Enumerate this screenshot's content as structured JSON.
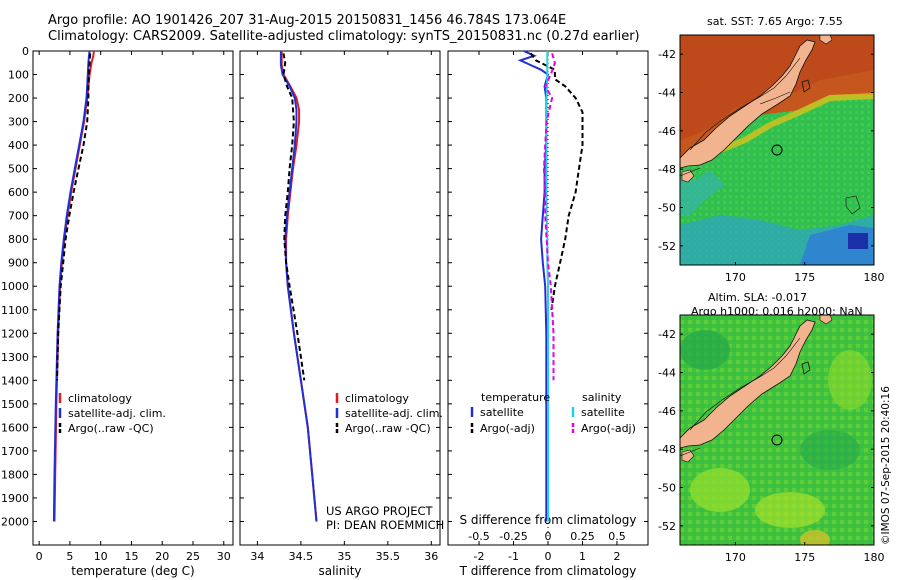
{
  "header": {
    "line1": "Argo profile: AO 1901426_207 31-Aug-2015 20150831_1456 46.784S 173.064E",
    "line2": "Climatology: CARS2009. Satellite-adjusted climatology: synTS_20150831.nc (0.27d earlier)"
  },
  "credit": {
    "project": "US ARGO PROJECT",
    "pi": "PI: DEAN ROEMMICH",
    "stamp": "©IMOS 07-Sep-2015 20:40:16"
  },
  "colors": {
    "climatology": "#e41a1c",
    "satellite": "#1f2fd6",
    "argo": "#000000",
    "salinity_satellite": "#22d3e6",
    "salinity_argo": "#e600e6",
    "land": "#f2b48f"
  },
  "depth_axis": {
    "ticks": [
      "0",
      "100",
      "200",
      "300",
      "400",
      "500",
      "600",
      "700",
      "800",
      "900",
      "1000",
      "1100",
      "1200",
      "1300",
      "1400",
      "1500",
      "1600",
      "1700",
      "1800",
      "1900",
      "2000"
    ],
    "range": [
      0,
      2100
    ]
  },
  "chart_data": [
    {
      "id": "temperature",
      "type": "line",
      "xlabel": "temperature (deg C)",
      "xlim": [
        -1,
        31.5
      ],
      "xticks": [
        "0",
        "5",
        "10",
        "15",
        "20",
        "25",
        "30"
      ],
      "xtick_values": [
        0,
        5,
        10,
        15,
        20,
        25,
        30
      ],
      "ylim": [
        2100,
        0
      ],
      "legend": [
        "climatology",
        "satellite-adj. clim.",
        "Argo(..raw -QC)"
      ],
      "series": [
        {
          "name": "climatology",
          "color": "#e41a1c",
          "dash": "",
          "depth": [
            0,
            20,
            50,
            100,
            150,
            200,
            300,
            400,
            500,
            600,
            700,
            800,
            900,
            1000,
            1200,
            1500,
            1800,
            2000
          ],
          "values": [
            8.9,
            8.8,
            8.5,
            8.2,
            8.0,
            7.8,
            7.3,
            6.6,
            5.9,
            5.2,
            4.6,
            4.1,
            3.7,
            3.4,
            3.1,
            2.8,
            2.6,
            2.5
          ]
        },
        {
          "name": "satellite-adj. clim.",
          "color": "#1f2fd6",
          "dash": "",
          "depth": [
            0,
            20,
            50,
            100,
            150,
            200,
            300,
            400,
            500,
            600,
            700,
            800,
            900,
            1000,
            1200,
            1500,
            1800,
            2000
          ],
          "values": [
            8.2,
            8.1,
            8.0,
            7.9,
            7.8,
            7.7,
            7.2,
            6.5,
            5.8,
            5.1,
            4.5,
            4.0,
            3.6,
            3.3,
            3.0,
            2.7,
            2.5,
            2.4
          ]
        },
        {
          "name": "Argo(..raw -QC)",
          "color": "#000000",
          "dash": "5,3",
          "depth": [
            10,
            50,
            100,
            150,
            200,
            300,
            400,
            500,
            600,
            700,
            800,
            900,
            1000,
            1200,
            1400
          ],
          "values": [
            8.3,
            8.2,
            8.1,
            8.0,
            8.0,
            7.8,
            7.2,
            6.4,
            5.6,
            4.9,
            4.3,
            3.9,
            3.5,
            3.1,
            2.9
          ]
        }
      ]
    },
    {
      "id": "salinity",
      "type": "line",
      "xlabel": "salinity",
      "xlim": [
        33.8,
        36.1
      ],
      "xticks": [
        "34",
        "34.5",
        "35",
        "35.5",
        "36"
      ],
      "xtick_values": [
        34,
        34.5,
        35,
        35.5,
        36
      ],
      "ylim": [
        2100,
        0
      ],
      "legend": [
        "climatology",
        "satellite-adj. clim.",
        "Argo(..raw -QC)"
      ],
      "series": [
        {
          "name": "climatology",
          "color": "#e41a1c",
          "dash": "",
          "depth": [
            0,
            30,
            60,
            100,
            150,
            200,
            250,
            300,
            400,
            500,
            600,
            700,
            800,
            900,
            1000,
            1200,
            1400,
            1600,
            1800,
            2000
          ],
          "values": [
            34.28,
            34.28,
            34.28,
            34.3,
            34.38,
            34.45,
            34.48,
            34.48,
            34.45,
            34.41,
            34.38,
            34.35,
            34.33,
            34.33,
            34.35,
            34.42,
            34.5,
            34.58,
            34.63,
            34.68
          ]
        },
        {
          "name": "satellite-adj. clim.",
          "color": "#1f2fd6",
          "dash": "",
          "depth": [
            0,
            30,
            60,
            100,
            150,
            200,
            250,
            300,
            400,
            500,
            600,
            700,
            800,
            900,
            1000,
            1200,
            1400,
            1600,
            1800,
            2000
          ],
          "values": [
            34.27,
            34.27,
            34.27,
            34.29,
            34.37,
            34.43,
            34.45,
            34.45,
            34.43,
            34.4,
            34.37,
            34.34,
            34.32,
            34.33,
            34.35,
            34.42,
            34.5,
            34.58,
            34.63,
            34.68
          ]
        },
        {
          "name": "Argo(..raw -QC)",
          "color": "#000000",
          "dash": "5,3",
          "depth": [
            10,
            50,
            100,
            150,
            200,
            300,
            400,
            500,
            600,
            700,
            800,
            900,
            1000,
            1200,
            1400
          ],
          "values": [
            34.3,
            34.32,
            34.3,
            34.34,
            34.4,
            34.42,
            34.4,
            34.37,
            34.35,
            34.32,
            34.31,
            34.33,
            34.37,
            34.46,
            34.54
          ]
        }
      ]
    },
    {
      "id": "difference",
      "type": "line",
      "xlabel": "T difference from climatology",
      "xlabel_top": "S difference from climatology",
      "xlim": [
        -2.9,
        2.9
      ],
      "xticks": [
        "-2",
        "-1",
        "0",
        "1",
        "2"
      ],
      "xtick_values": [
        -2,
        -1,
        0,
        1,
        2
      ],
      "xticks_top": [
        "-0.5",
        "-0.25",
        "0",
        "0.25",
        "0.5"
      ],
      "xtick_top_values": [
        -0.5,
        -0.25,
        0,
        0.25,
        0.5
      ],
      "ylim": [
        2100,
        0
      ],
      "legend_groups": [
        "temperature",
        "salinity"
      ],
      "legend": [
        "satellite",
        "Argo(-adj)",
        "satellite",
        "Argo(-adj)"
      ],
      "series": [
        {
          "name": "satellite",
          "group": "temperature",
          "color": "#1f2fd6",
          "dash": "",
          "depth": [
            0,
            20,
            40,
            60,
            80,
            100,
            150,
            200,
            300,
            400,
            500,
            600,
            700,
            800,
            900,
            1000,
            1200,
            1500,
            1800,
            2000
          ],
          "values": [
            -0.7,
            -0.4,
            -0.8,
            -0.5,
            -0.2,
            0,
            -0.1,
            -0.05,
            -0.05,
            -0.05,
            -0.1,
            -0.1,
            -0.15,
            -0.2,
            -0.15,
            -0.08,
            -0.05,
            -0.05,
            -0.05,
            -0.05
          ]
        },
        {
          "name": "Argo(-adj)",
          "group": "temperature",
          "color": "#000000",
          "dash": "5,3",
          "depth": [
            10,
            40,
            80,
            120,
            150,
            200,
            260,
            300,
            400,
            500,
            600,
            700,
            800,
            900,
            1000,
            1100
          ],
          "values": [
            -0.5,
            -0.35,
            0.2,
            0.2,
            0.5,
            0.8,
            1.0,
            1.0,
            1.0,
            0.9,
            0.8,
            0.6,
            0.5,
            0.35,
            0.2,
            0.1
          ]
        },
        {
          "name": "satellite",
          "group": "salinity",
          "color": "#22d3e6",
          "dash": "",
          "depth": [
            0,
            50,
            100,
            200,
            300,
            400,
            500,
            600,
            700,
            800,
            900,
            1000,
            1200,
            1500,
            1800,
            2000
          ],
          "values": [
            -0.005,
            -0.005,
            -0.005,
            -0.01,
            -0.01,
            -0.01,
            -0.01,
            -0.01,
            -0.01,
            -0.005,
            -0.005,
            0,
            0,
            0,
            0,
            0
          ]
        },
        {
          "name": "Argo(-adj)",
          "group": "salinity",
          "color": "#e600e6",
          "dash": "5,3",
          "depth": [
            10,
            50,
            100,
            150,
            200,
            300,
            400,
            500,
            600,
            700,
            800,
            900,
            1000,
            1200,
            1400
          ],
          "values": [
            0.03,
            0.05,
            0.02,
            -0.02,
            0.03,
            -0.01,
            -0.02,
            -0.03,
            -0.02,
            -0.02,
            -0.01,
            0.0,
            0.02,
            0.04,
            0.04
          ]
        }
      ]
    }
  ],
  "maps": [
    {
      "id": "sst-map",
      "title": "sat. SST: 7.65 Argo: 7.55",
      "title2": "",
      "yticks": [
        "-42",
        "-44",
        "-46",
        "-48",
        "-50",
        "-52"
      ],
      "ytick_values": [
        -42,
        -44,
        -46,
        -48,
        -50,
        -52
      ],
      "xticks": [
        "170",
        "175",
        "180"
      ],
      "xtick_values": [
        170,
        175,
        180
      ],
      "lat_range": [
        -41,
        -53
      ],
      "lon_range": [
        166,
        180
      ],
      "profile_lon": 173.064,
      "profile_lat": -46.784
    },
    {
      "id": "sla-map",
      "title": "Altim. SLA: -0.017",
      "title2": "Argo h1000: 0.016 h2000: NaN",
      "yticks": [
        "-42",
        "-44",
        "-46",
        "-48",
        "-50",
        "-52"
      ],
      "ytick_values": [
        -42,
        -44,
        -46,
        -48,
        -50,
        -52
      ],
      "xticks": [
        "170",
        "175",
        "180"
      ],
      "xtick_values": [
        170,
        175,
        180
      ],
      "lat_range": [
        -41,
        -53
      ],
      "lon_range": [
        166,
        180
      ],
      "profile_lon": 173.064,
      "profile_lat": -46.784
    }
  ]
}
